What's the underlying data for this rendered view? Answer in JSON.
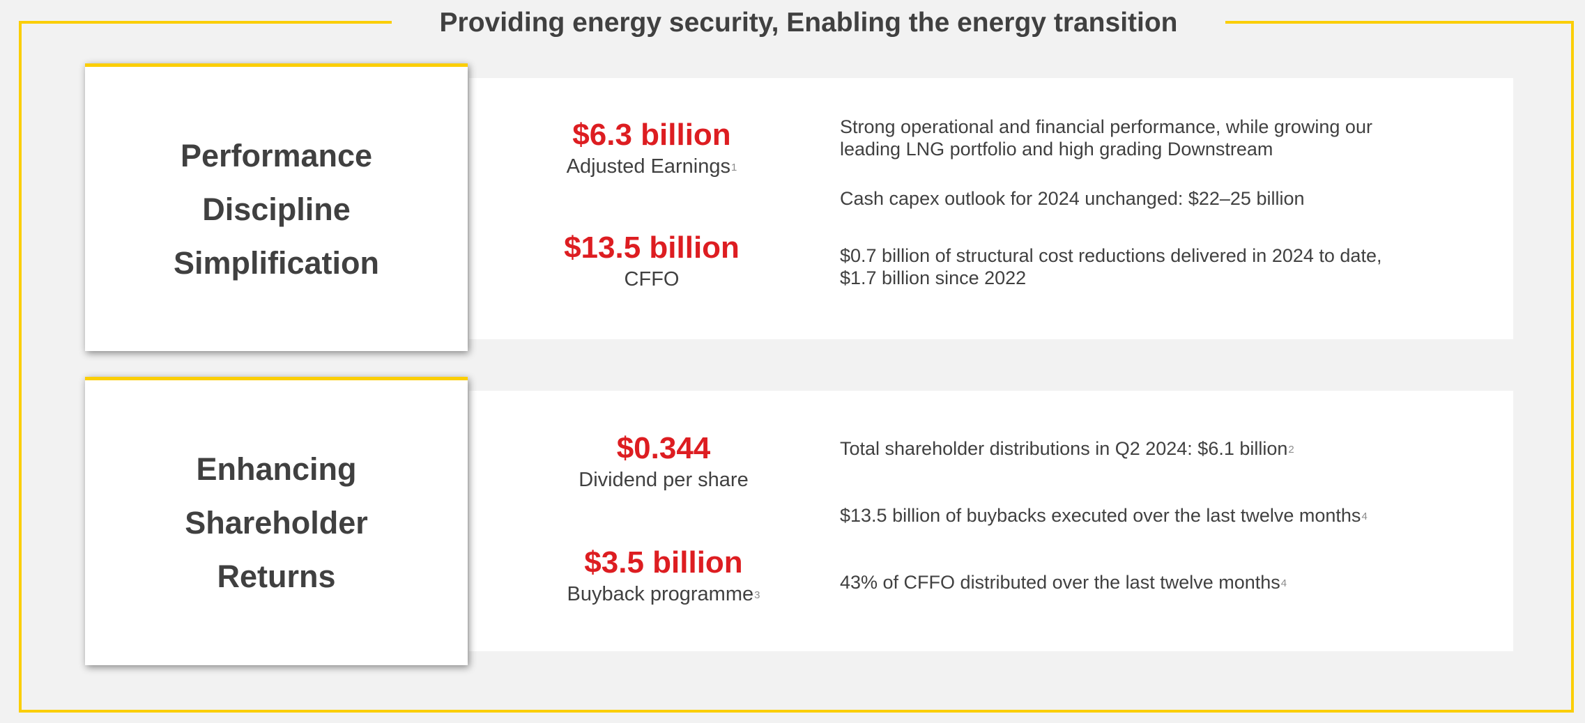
{
  "header": {
    "title": "Providing energy security, Enabling the energy transition"
  },
  "colors": {
    "accent_yellow": "#fbce07",
    "value_red": "#dd1d21",
    "text_dark": "#404040",
    "background": "#f2f2f2"
  },
  "section1": {
    "card_lines": [
      "Performance",
      "Discipline",
      "Simplification"
    ],
    "metrics": [
      {
        "value": "$6.3 billion",
        "label": "Adjusted Earnings",
        "footnote": "1"
      },
      {
        "value": "$13.5 billion",
        "label": "CFFO",
        "footnote": ""
      }
    ],
    "points": [
      {
        "text": "Strong operational and financial performance, while growing our leading LNG portfolio and high grading Downstream",
        "footnote": ""
      },
      {
        "text": "Cash capex outlook for 2024 unchanged: $22–25 billion",
        "footnote": ""
      },
      {
        "text": "$0.7 billion of structural cost reductions delivered in 2024 to date, $1.7 billion since 2022",
        "footnote": ""
      }
    ]
  },
  "section2": {
    "card_lines": [
      "Enhancing",
      "Shareholder",
      "Returns"
    ],
    "metrics": [
      {
        "value": "$0.344",
        "label": "Dividend per share",
        "footnote": ""
      },
      {
        "value": "$3.5 billion",
        "label": "Buyback programme",
        "footnote": "3"
      }
    ],
    "points": [
      {
        "text": "Total shareholder distributions in Q2 2024: $6.1 billion",
        "footnote": "2"
      },
      {
        "text": "$13.5 billion of buybacks executed over the last twelve months",
        "footnote": "4"
      },
      {
        "text": "43% of CFFO distributed over the last twelve months",
        "footnote": "4"
      }
    ]
  }
}
